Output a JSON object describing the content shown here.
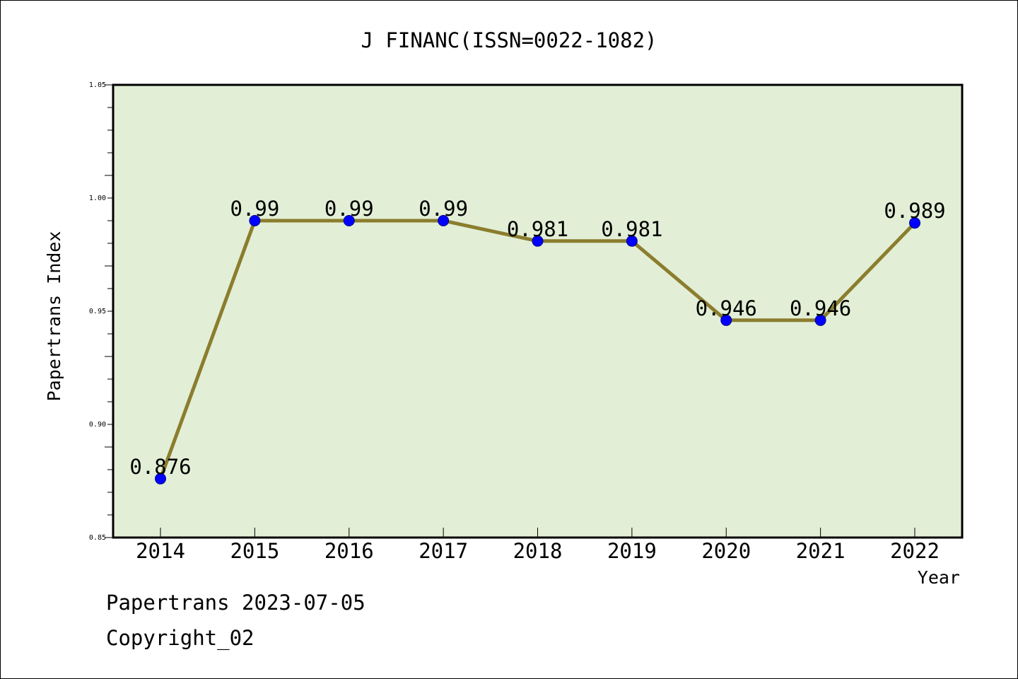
{
  "chart_data": {
    "type": "line",
    "title": "J FINANC(ISSN=0022-1082)",
    "xlabel": "Year",
    "ylabel": "Papertrans Index",
    "categories": [
      "2014",
      "2015",
      "2016",
      "2017",
      "2018",
      "2019",
      "2020",
      "2021",
      "2022"
    ],
    "values": [
      0.876,
      0.99,
      0.99,
      0.99,
      0.981,
      0.981,
      0.946,
      0.946,
      0.989
    ],
    "data_labels": [
      "0.876",
      "0.99",
      "0.99",
      "0.99",
      "0.981",
      "0.981",
      "0.946",
      "0.946",
      "0.989"
    ],
    "ylim": [
      0.85,
      1.05
    ],
    "yticks": [
      0.85,
      0.9,
      0.95,
      1.0,
      1.05
    ],
    "ytick_labels": [
      "0.85",
      "0.90",
      "0.95",
      "1.00",
      "1.05"
    ],
    "grid": false,
    "colors": {
      "plot_background": "#e2efd6",
      "line": "#8b7d2e",
      "marker": "#0000ff"
    }
  },
  "footer": {
    "line1": "Papertrans 2023-07-05",
    "line2": "Copyright_02"
  }
}
